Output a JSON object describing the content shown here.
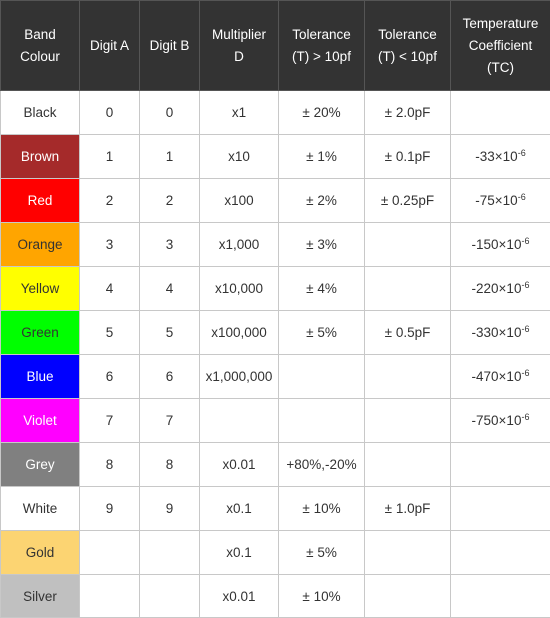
{
  "headers": [
    [
      "Band",
      "Colour"
    ],
    [
      "Digit A"
    ],
    [
      "Digit B"
    ],
    [
      "Multiplier",
      "D"
    ],
    [
      "Tolerance",
      "(T) > 10pf"
    ],
    [
      "Tolerance",
      "(T) < 10pf"
    ],
    [
      "Temperature",
      "Coefficient",
      "(TC)"
    ]
  ],
  "rows": [
    {
      "band": "Black",
      "bg": "#ffffff",
      "fg": "#333333",
      "digit_a": "0",
      "digit_b": "0",
      "multiplier": "x1",
      "tol_gt": "± 20%",
      "tol_lt": "± 2.0pF",
      "tc_base": "",
      "tc_exp": ""
    },
    {
      "band": "Brown",
      "bg": "#a52a2a",
      "fg": "#ffffff",
      "digit_a": "1",
      "digit_b": "1",
      "multiplier": "x10",
      "tol_gt": "± 1%",
      "tol_lt": "± 0.1pF",
      "tc_base": "-33×10",
      "tc_exp": "-6"
    },
    {
      "band": "Red",
      "bg": "#ff0000",
      "fg": "#ffffff",
      "digit_a": "2",
      "digit_b": "2",
      "multiplier": "x100",
      "tol_gt": "± 2%",
      "tol_lt": "± 0.25pF",
      "tc_base": "-75×10",
      "tc_exp": "-6"
    },
    {
      "band": "Orange",
      "bg": "#ffa500",
      "fg": "#333333",
      "digit_a": "3",
      "digit_b": "3",
      "multiplier": "x1,000",
      "tol_gt": "± 3%",
      "tol_lt": "",
      "tc_base": "-150×10",
      "tc_exp": "-6"
    },
    {
      "band": "Yellow",
      "bg": "#ffff00",
      "fg": "#333333",
      "digit_a": "4",
      "digit_b": "4",
      "multiplier": "x10,000",
      "tol_gt": "± 4%",
      "tol_lt": "",
      "tc_base": "-220×10",
      "tc_exp": "-6"
    },
    {
      "band": "Green",
      "bg": "#00ff00",
      "fg": "#333333",
      "digit_a": "5",
      "digit_b": "5",
      "multiplier": "x100,000",
      "tol_gt": "± 5%",
      "tol_lt": "± 0.5pF",
      "tc_base": "-330×10",
      "tc_exp": "-6"
    },
    {
      "band": "Blue",
      "bg": "#0000ff",
      "fg": "#ffffff",
      "digit_a": "6",
      "digit_b": "6",
      "multiplier": "x1,000,000",
      "tol_gt": "",
      "tol_lt": "",
      "tc_base": "-470×10",
      "tc_exp": "-6"
    },
    {
      "band": "Violet",
      "bg": "#ff00ff",
      "fg": "#ffffff",
      "digit_a": "7",
      "digit_b": "7",
      "multiplier": "",
      "tol_gt": "",
      "tol_lt": "",
      "tc_base": "-750×10",
      "tc_exp": "-6"
    },
    {
      "band": "Grey",
      "bg": "#808080",
      "fg": "#ffffff",
      "digit_a": "8",
      "digit_b": "8",
      "multiplier": "x0.01",
      "tol_gt": "+80%,-20%",
      "tol_lt": "",
      "tc_base": "",
      "tc_exp": ""
    },
    {
      "band": "White",
      "bg": "#ffffff",
      "fg": "#333333",
      "digit_a": "9",
      "digit_b": "9",
      "multiplier": "x0.1",
      "tol_gt": "± 10%",
      "tol_lt": "± 1.0pF",
      "tc_base": "",
      "tc_exp": ""
    },
    {
      "band": "Gold",
      "bg": "#fcd472",
      "fg": "#333333",
      "digit_a": "",
      "digit_b": "",
      "multiplier": "x0.1",
      "tol_gt": "± 5%",
      "tol_lt": "",
      "tc_base": "",
      "tc_exp": ""
    },
    {
      "band": "Silver",
      "bg": "#c0c0c0",
      "fg": "#333333",
      "digit_a": "",
      "digit_b": "",
      "multiplier": "x0.01",
      "tol_gt": "± 10%",
      "tol_lt": "",
      "tc_base": "",
      "tc_exp": ""
    }
  ]
}
